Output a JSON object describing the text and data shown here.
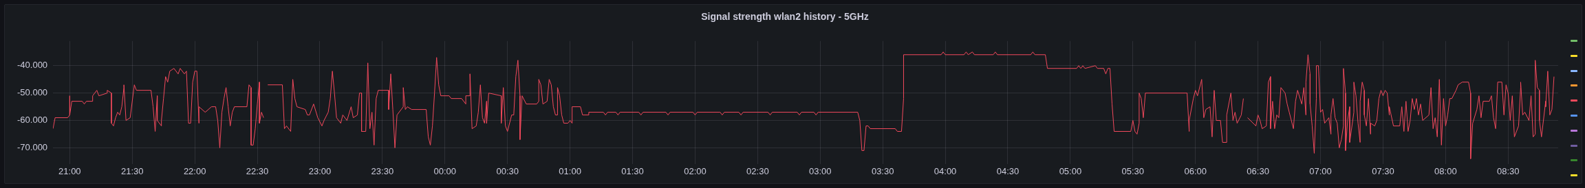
{
  "chart_data": {
    "type": "line",
    "title": "Signal strength wlan2 history - 5GHz",
    "xlim": [
      "--01-01T20:52",
      "--01-02T08:54"
    ],
    "ylim": [
      -76,
      -31
    ],
    "xticks": [
      {
        "value": "--01-01T21:00",
        "label": "21:00"
      },
      {
        "value": "--01-01T21:30",
        "label": "21:30"
      },
      {
        "value": "--01-01T22:00",
        "label": "22:00"
      },
      {
        "value": "--01-01T22:30",
        "label": "22:30"
      },
      {
        "value": "--01-01T23:00",
        "label": "23:00"
      },
      {
        "value": "--01-01T23:30",
        "label": "23:30"
      },
      {
        "value": "--01-02T00:00",
        "label": "00:00"
      },
      {
        "value": "--01-02T00:30",
        "label": "00:30"
      },
      {
        "value": "--01-02T01:00",
        "label": "01:00"
      },
      {
        "value": "--01-02T01:30",
        "label": "01:30"
      },
      {
        "value": "--01-02T02:00",
        "label": "02:00"
      },
      {
        "value": "--01-02T02:30",
        "label": "02:30"
      },
      {
        "value": "--01-02T03:00",
        "label": "03:00"
      },
      {
        "value": "--01-02T03:30",
        "label": "03:30"
      },
      {
        "value": "--01-02T04:00",
        "label": "04:00"
      },
      {
        "value": "--01-02T04:30",
        "label": "04:30"
      },
      {
        "value": "--01-02T05:00",
        "label": "05:00"
      },
      {
        "value": "--01-02T05:30",
        "label": "05:30"
      },
      {
        "value": "--01-02T06:00",
        "label": "06:00"
      },
      {
        "value": "--01-02T06:30",
        "label": "06:30"
      },
      {
        "value": "--01-02T07:00",
        "label": "07:00"
      },
      {
        "value": "--01-02T07:30",
        "label": "07:30"
      },
      {
        "value": "--01-02T08:00",
        "label": "08:00"
      },
      {
        "value": "--01-02T08:30",
        "label": "08:30"
      }
    ],
    "yticks": [
      {
        "value": -70,
        "label": "-70.000"
      },
      {
        "value": -60,
        "label": "-60.000"
      },
      {
        "value": -50,
        "label": "-50.000"
      },
      {
        "value": -40,
        "label": "-40.000"
      }
    ],
    "grid": true,
    "marker": "none",
    "line_style": "solid",
    "series": [
      {
        "color": "#f2495c",
        "x": [
          "--01-01T20:52",
          "--01-01T20:53",
          "--01-01T20:59",
          "--01-01T21:00",
          "--01-01T21:00",
          "--01-01T21:00",
          "--01-01T21:01",
          "--01-01T21:06",
          "--01-01T21:07",
          "--01-01T21:08",
          "--01-01T21:11",
          "--01-01T21:11",
          "--01-01T21:13",
          "--01-01T21:14",
          "--01-01T21:18",
          "--01-01T21:18",
          "--01-01T21:20",
          "--01-01T21:20",
          "--01-01T21:21",
          "--01-01T21:22",
          "--01-01T21:23",
          "--01-01T21:24",
          "--01-01T21:25",
          "--01-01T21:26",
          "--01-01T21:26",
          "--01-01T21:27",
          "--01-01T21:29",
          "--01-01T21:31",
          "--01-01T21:32",
          "--01-01T21:39",
          "--01-01T21:40",
          "--01-01T21:41",
          "--01-01T21:42",
          "--01-01T21:42",
          "--01-01T21:44",
          "--01-01T21:44",
          "--01-01T21:45",
          "--01-01T21:46",
          "--01-01T21:47",
          "--01-01T21:48",
          "--01-01T21:50",
          "--01-01T21:52",
          "--01-01T21:53",
          "--01-01T21:55",
          "--01-01T21:56",
          "--01-01T21:57",
          "--01-01T21:58",
          "--01-01T21:59",
          "--01-01T22:00",
          "--01-01T22:01",
          "--01-01T22:02",
          "--01-01T22:02",
          "--01-01T22:05",
          "--01-01T22:08",
          "--01-01T22:10",
          "--01-01T22:11",
          "--01-01T22:12",
          "--01-01T22:13",
          "--01-01T22:14",
          "--01-01T22:15",
          "--01-01T22:16",
          "--01-01T22:17",
          "--01-01T22:18",
          "--01-01T22:19",
          "--01-01T22:25",
          "--01-01T22:26",
          "--01-01T22:27",
          "--01-01T22:27",
          "--01-01T22:28",
          "--01-01T22:29",
          "--01-01T22:30",
          "--01-01T22:31",
          "--01-01T22:31",
          "--01-01T22:32",
          "--01-01T22:33",
          "--01-01T22:34",
          "--01-01T22:35",
          "--01-01T22:42",
          "--01-01T22:43",
          "--01-01T22:44",
          "--01-01T22:46",
          "--01-01T22:47",
          "--01-01T22:48",
          "--01-01T22:49",
          "--01-01T22:53",
          "--01-01T22:54",
          "--01-01T22:55",
          "--01-01T22:57",
          "--01-01T22:59",
          "--01-01T23:01",
          "--01-01T23:02",
          "--01-01T23:04",
          "--01-01T23:05",
          "--01-01T23:06",
          "--01-01T23:07",
          "--01-01T23:08",
          "--01-01T23:10",
          "--01-01T23:11",
          "--01-01T23:13",
          "--01-01T23:15",
          "--01-01T23:16",
          "--01-01T23:18",
          "--01-01T23:19",
          "--01-01T23:20",
          "--01-01T23:20",
          "--01-01T23:22",
          "--01-01T23:23",
          "--01-01T23:24",
          "--01-01T23:25",
          "--01-01T23:26",
          "--01-01T23:27",
          "--01-01T23:28",
          "--01-01T23:33",
          "--01-01T23:33",
          "--01-01T23:34",
          "--01-01T23:35",
          "--01-01T23:36",
          "--01-01T23:37",
          "--01-01T23:40",
          "--01-01T23:40",
          "--01-01T23:41",
          "--01-01T23:42",
          "--01-01T23:44",
          "--01-01T23:51",
          "--01-01T23:52",
          "--01-01T23:53",
          "--01-01T23:54",
          "--01-01T23:55",
          "--01-01T23:56",
          "--01-01T23:57",
          "--01-01T23:58",
          "--01-02T00:02",
          "--01-02T00:03",
          "--01-02T00:08",
          "--01-02T00:10",
          "--01-02T00:10",
          "--01-02T00:12",
          "--01-02T00:12",
          "--01-02T00:13",
          "--01-02T00:15",
          "--01-02T00:16",
          "--01-02T00:17",
          "--01-02T00:18",
          "--01-02T00:19",
          "--01-02T00:20",
          "--01-02T00:20",
          "--01-02T00:21",
          "--01-02T00:27",
          "--01-02T00:27",
          "--01-02T00:28",
          "--01-02T00:29",
          "--01-02T00:30",
          "--01-02T00:32",
          "--01-02T00:33",
          "--01-02T00:34",
          "--01-02T00:35",
          "--01-02T00:36",
          "--01-02T00:36",
          "--01-02T00:37",
          "--01-02T00:39",
          "--01-02T00:44",
          "--01-02T00:45",
          "--01-02T00:45",
          "--01-02T00:46",
          "--01-02T00:47",
          "--01-02T00:49",
          "--01-02T00:50",
          "--01-02T00:51",
          "--01-02T00:52",
          "--01-02T00:53",
          "--01-02T00:54",
          "--01-02T00:54",
          "--01-02T00:55",
          "--01-02T00:56",
          "--01-02T00:57",
          "--01-02T00:59",
          "--01-02T01:00",
          "--01-02T01:01",
          "--01-02T01:01",
          "--01-02T01:05",
          "--01-02T01:06",
          "--01-02T01:09",
          "--01-02T01:09",
          "--01-02T01:16",
          "--01-02T01:17",
          "--01-02T01:18",
          "--01-02T01:22",
          "--01-02T01:23",
          "--01-02T01:24",
          "--01-02T01:33",
          "--01-02T01:34",
          "--01-02T01:35",
          "--01-02T01:46",
          "--01-02T01:47",
          "--01-02T01:48",
          "--01-02T01:59",
          "--01-02T02:00",
          "--01-02T02:01",
          "--01-02T02:12",
          "--01-02T02:13",
          "--01-02T02:14",
          "--01-02T02:21",
          "--01-02T02:22",
          "--01-02T02:23",
          "--01-02T02:35",
          "--01-02T02:36",
          "--01-02T02:37",
          "--01-02T02:49",
          "--01-02T02:50",
          "--01-02T02:51",
          "--01-02T02:57",
          "--01-02T02:58",
          "--01-02T02:59",
          "--01-02T03:18",
          "--01-02T03:19",
          "--01-02T03:20",
          "--01-02T03:21",
          "--01-02T03:22",
          "--01-02T03:23",
          "--01-02T03:24",
          "--01-02T03:36",
          "--01-02T03:37",
          "--01-02T03:39",
          "--01-02T03:40",
          "--01-02T03:40",
          "--01-02T03:58",
          "--01-02T03:59",
          "--01-02T04:00",
          "--01-02T04:09",
          "--01-02T04:10",
          "--01-02T04:11",
          "--01-02T04:13",
          "--01-02T04:14",
          "--01-02T04:23",
          "--01-02T04:24",
          "--01-02T04:25",
          "--01-02T04:41",
          "--01-02T04:42",
          "--01-02T04:43",
          "--01-02T04:48",
          "--01-02T04:49",
          "--01-02T05:03",
          "--01-02T05:04",
          "--01-02T05:05",
          "--01-02T05:06",
          "--01-02T05:07",
          "--01-02T05:12",
          "--01-02T05:13",
          "--01-02T05:16",
          "--01-02T05:17",
          "--01-02T05:18",
          "--01-02T05:19",
          "--01-02T05:20",
          "--01-02T05:21",
          "--01-02T05:29",
          "--01-02T05:30",
          "--01-02T05:31",
          "--01-02T05:32",
          "--01-02T05:33",
          "--01-02T05:33",
          "--01-02T05:34",
          "--01-02T05:35",
          "--01-02T05:36",
          "--01-02T05:56",
          "--01-02T05:57",
          "--01-02T05:57",
          "--01-02T05:59",
          "--01-02T06:00",
          "--01-02T06:01",
          "--01-02T06:03",
          "--01-02T06:04",
          "--01-02T06:05",
          "--01-02T06:07",
          "--01-02T06:08",
          "--01-02T06:09",
          "--01-02T06:10",
          "--01-02T06:12",
          "--01-02T06:13",
          "--01-02T06:15",
          "--01-02T06:15",
          "--01-02T06:17",
          "--01-02T06:18",
          "--01-02T06:19",
          "--01-02T06:20",
          "--01-02T06:22",
          "--01-02T06:23",
          "--01-02T06:24",
          "--01-02T06:25",
          "--01-02T06:29",
          "--01-02T06:30",
          "--01-02T06:31",
          "--01-02T06:32",
          "--01-02T06:34",
          "--01-02T06:35",
          "--01-02T06:36",
          "--01-02T06:36",
          "--01-02T06:37",
          "--01-02T06:38",
          "--01-02T06:39",
          "--01-02T06:40",
          "--01-02T06:41",
          "--01-02T06:43",
          "--01-02T06:44",
          "--01-02T06:45",
          "--01-02T06:47",
          "--01-02T06:48",
          "--01-02T06:49",
          "--01-02T06:51",
          "--01-02T06:52",
          "--01-02T06:53",
          "--01-02T06:53",
          "--01-02T06:54",
          "--01-02T06:55",
          "--01-02T06:55",
          "--01-02T06:56",
          "--01-02T06:57",
          "--01-02T06:58",
          "--01-02T06:58",
          "--01-02T06:59",
          "--01-02T07:00",
          "--01-02T07:01",
          "--01-02T07:02",
          "--01-02T07:04",
          "--01-02T07:05",
          "--01-02T07:05",
          "--01-02T07:06",
          "--01-02T07:07",
          "--01-02T07:08",
          "--01-02T07:09",
          "--01-02T07:10",
          "--01-02T07:11",
          "--01-02T07:11",
          "--01-02T07:12",
          "--01-02T07:12",
          "--01-02T07:13",
          "--01-02T07:14",
          "--01-02T07:14",
          "--01-02T07:16",
          "--01-02T07:16",
          "--01-02T07:17",
          "--01-02T07:18",
          "--01-02T07:19",
          "--01-02T07:19",
          "--01-02T07:20",
          "--01-02T07:21",
          "--01-02T07:21",
          "--01-02T07:22",
          "--01-02T07:23",
          "--01-02T07:24",
          "--01-02T07:24",
          "--01-02T07:26",
          "--01-02T07:27",
          "--01-02T07:28",
          "--01-02T07:29",
          "--01-02T07:30",
          "--01-02T07:31",
          "--01-02T07:32",
          "--01-02T07:33",
          "--01-02T07:33",
          "--01-02T07:35",
          "--01-02T07:38",
          "--01-02T07:39",
          "--01-02T07:40",
          "--01-02T07:41",
          "--01-02T07:42",
          "--01-02T07:43",
          "--01-02T07:44",
          "--01-02T07:45",
          "--01-02T07:46",
          "--01-02T07:47",
          "--01-02T07:48",
          "--01-02T07:49",
          "--01-02T07:52",
          "--01-02T07:53",
          "--01-02T07:54",
          "--01-02T07:55",
          "--01-02T07:56",
          "--01-02T07:57",
          "--01-02T07:58",
          "--01-02T07:59",
          "--01-02T08:00",
          "--01-02T08:01",
          "--01-02T08:02",
          "--01-02T08:03",
          "--01-02T08:05",
          "--01-02T08:06",
          "--01-02T08:08",
          "--01-02T08:11",
          "--01-02T08:12",
          "--01-02T08:12",
          "--01-02T08:13",
          "--01-02T08:15",
          "--01-02T08:16",
          "--01-02T08:17",
          "--01-02T08:18",
          "--01-02T08:21",
          "--01-02T08:22",
          "--01-02T08:23",
          "--01-02T08:24",
          "--01-02T08:25",
          "--01-02T08:27",
          "--01-02T08:28",
          "--01-02T08:29",
          "--01-02T08:30",
          "--01-02T08:31",
          "--01-02T08:32",
          "--01-02T08:33",
          "--01-02T08:35",
          "--01-02T08:36",
          "--01-02T08:36",
          "--01-02T08:37",
          "--01-02T08:38",
          "--01-02T08:40",
          "--01-02T08:41",
          "--01-02T08:42",
          "--01-02T08:43",
          "--01-02T08:43",
          "--01-02T08:44",
          "--01-02T08:45",
          "--01-02T08:45",
          "--01-02T08:46",
          "--01-02T08:48",
          "--01-02T08:48",
          "--01-02T08:49",
          "--01-02T08:50",
          "--01-02T08:51",
          "--01-02T08:52"
        ],
        "values": [
          -63,
          -59,
          -59,
          -58,
          -51,
          -58,
          -53,
          -53,
          -54,
          -53,
          -53,
          -51,
          -49,
          -51,
          -50,
          -49,
          -50,
          -61,
          -62,
          -59,
          -57,
          -58,
          -55,
          -48,
          -47,
          -60,
          -59,
          -47,
          -49,
          -49,
          -55,
          -64,
          -51,
          -60,
          -62,
          -60,
          -52,
          -44,
          -46,
          -42,
          -41,
          -43,
          -41,
          -43,
          -42,
          -61,
          -61,
          -46,
          -42,
          -42,
          -61,
          -55,
          -57,
          -55,
          -55,
          -60,
          -70,
          -57,
          -52,
          -48,
          -55,
          -62,
          -57,
          -55,
          -55,
          -47,
          -48,
          -69,
          -69,
          -63,
          -54,
          -46,
          -61,
          -57,
          -59,
          null,
          -47,
          -47,
          -63,
          -62,
          -64,
          -45,
          -52,
          -55,
          -56,
          -58,
          -58,
          -54,
          -59,
          -62,
          -60,
          -57,
          -52,
          -42,
          -50,
          -59,
          -61,
          -58,
          -60,
          -55,
          -59,
          -58,
          -50,
          -50,
          -64,
          -64,
          -39,
          -63,
          -57,
          -69,
          -52,
          -49,
          -49,
          -56,
          -43,
          -56,
          -70,
          -58,
          -55,
          -48,
          -56,
          -55,
          -56,
          -56,
          -66,
          -69,
          -62,
          -50,
          -37,
          -47,
          -51,
          -51,
          -52,
          -52,
          -54,
          -51,
          -51,
          -43,
          -63,
          -62,
          -57,
          -47,
          -59,
          -61,
          -53,
          -61,
          -50,
          -51,
          -61,
          -48,
          -62,
          -64,
          -58,
          -58,
          -44,
          -38,
          -51,
          -67,
          -51,
          -54,
          -54,
          -53,
          -45,
          -47,
          -54,
          -53,
          -45,
          -47,
          -55,
          -58,
          -58,
          -48,
          -51,
          -58,
          -61,
          -61,
          -60,
          -61,
          -55,
          -55,
          -58,
          -58,
          -57,
          -57,
          -58,
          -57,
          -57,
          -58,
          -57,
          -57,
          -58,
          -57,
          -57,
          -58,
          -57,
          -57,
          -58,
          -57,
          -57,
          -58,
          -57,
          -57,
          -58,
          -57,
          -57,
          -58,
          -57,
          -57,
          -58,
          -57,
          -57,
          -58,
          -57,
          -57,
          -60,
          -71,
          -71,
          -62,
          -62,
          -63,
          -63,
          -64,
          -64,
          -52,
          -36,
          -36,
          -35,
          -36,
          -36,
          -35,
          -36,
          -35,
          -36,
          -36,
          -35,
          -36,
          -36,
          -35,
          -36,
          -36,
          -41,
          -41,
          -40,
          -41,
          -40,
          -41,
          -40,
          -41,
          -41,
          -43,
          -41,
          -41,
          -54,
          -64,
          -64,
          -60,
          -64,
          -65,
          -61,
          -50,
          -52,
          -59,
          -50,
          -50,
          -64,
          -60,
          -52,
          -49,
          -51,
          -45,
          -59,
          -56,
          -55,
          -66,
          -49,
          -60,
          -60,
          -68,
          -68,
          -58,
          -50,
          -60,
          -57,
          -61,
          -58,
          -52,
          null,
          -59,
          -62,
          -58,
          -60,
          -63,
          -62,
          -46,
          -44,
          -63,
          -53,
          -63,
          -58,
          -59,
          -48,
          -50,
          -54,
          -57,
          -63,
          -53,
          -49,
          -54,
          -48,
          -58,
          -46,
          -36,
          -43,
          -54,
          -62,
          -72,
          -52,
          -40,
          -40,
          -57,
          -56,
          -61,
          -59,
          -65,
          -58,
          -52,
          -59,
          -61,
          -70,
          -67,
          -62,
          -41,
          -50,
          -71,
          -60,
          -55,
          -68,
          -57,
          -46,
          -51,
          -61,
          -68,
          -53,
          -46,
          -49,
          -58,
          -62,
          -52,
          -65,
          -61,
          -62,
          -60,
          -52,
          -49,
          -51,
          -49,
          -50,
          -58,
          -55,
          -62,
          -62,
          -55,
          -64,
          -53,
          -64,
          -60,
          -52,
          -56,
          -52,
          -58,
          -54,
          -60,
          -58,
          -48,
          -63,
          -59,
          -66,
          -45,
          -69,
          -52,
          -62,
          -58,
          -52,
          -52,
          -49,
          -47,
          -46,
          -46,
          -50,
          -74,
          -61,
          -56,
          -51,
          -59,
          -53,
          -53,
          -51,
          -59,
          -63,
          -46,
          -46,
          -58,
          -47,
          -50,
          -60,
          -51,
          -66,
          -62,
          -48,
          -46,
          -58,
          -57,
          -60,
          -51,
          -66,
          -65,
          -38,
          -48,
          -49,
          -60,
          -66,
          -53,
          -55,
          -42,
          -58,
          -56,
          -44
        ]
      }
    ]
  }
}
